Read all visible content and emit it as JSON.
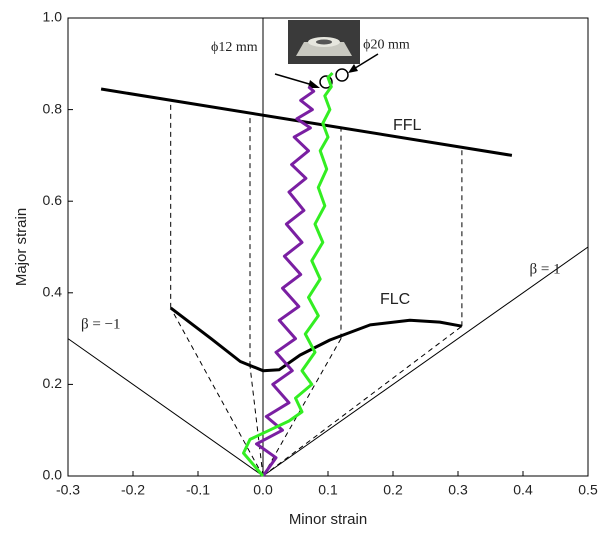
{
  "chart_data": {
    "type": "line",
    "xlabel": "Minor strain",
    "ylabel": "Major strain",
    "xlim": [
      -0.3,
      0.5
    ],
    "ylim": [
      0,
      1
    ],
    "xticks": [
      -0.3,
      -0.2,
      -0.1,
      {
        "value": 0,
        "label": "0.0"
      },
      0.1,
      0.2,
      0.3,
      0.4,
      0.5
    ],
    "yticks": [
      {
        "value": 0,
        "label": "0.0"
      },
      0.2,
      0.4,
      0.6,
      0.8,
      {
        "value": 1,
        "label": "1.0"
      }
    ],
    "series": [
      {
        "color": "#000000",
        "style": "solid",
        "width": 1,
        "x": [
          0,
          0
        ],
        "values": [
          0,
          1
        ]
      },
      {
        "color": "#000000",
        "style": "solid",
        "width": 1,
        "x": [
          -0.3,
          0,
          0.5
        ],
        "values": [
          0.3,
          0,
          0.5
        ]
      },
      {
        "color": "#000000",
        "style": "dashed",
        "width": 1,
        "x": [
          -0.142,
          -0.142,
          null,
          -0.02,
          -0.02,
          null,
          0.12,
          0.12,
          null,
          0.306,
          0.306,
          null,
          0,
          -0.142,
          null,
          0,
          -0.02,
          null,
          0,
          0.12,
          null,
          0,
          0.306
        ],
        "values": [
          0.367,
          0.815,
          null,
          0.24,
          0.79,
          null,
          0.3,
          0.76,
          null,
          0.327,
          0.72,
          null,
          0,
          0.367,
          null,
          0,
          0.24,
          null,
          0,
          0.3,
          null,
          0,
          0.327
        ]
      },
      {
        "color": "#000000",
        "style": "solid",
        "width": 3,
        "x": [
          -0.249,
          0.383
        ],
        "values": [
          0.845,
          0.7
        ]
      },
      {
        "color": "#000000",
        "style": "solid",
        "width": 3,
        "x": [
          -0.142,
          -0.08,
          -0.035,
          0,
          0.025,
          0.057,
          0.103,
          0.165,
          0.226,
          0.272,
          0.306
        ],
        "values": [
          0.367,
          0.3,
          0.25,
          0.23,
          0.232,
          0.264,
          0.297,
          0.33,
          0.34,
          0.336,
          0.327
        ]
      },
      {
        "color": "#7a1fa2",
        "style": "solid",
        "width": 3,
        "x": [
          0,
          0.02,
          -0.01,
          0.03,
          0.005,
          0.04,
          0.015,
          0.045,
          0.02,
          0.05,
          0.025,
          0.055,
          0.03,
          0.058,
          0.033,
          0.06,
          0.036,
          0.063,
          0.04,
          0.066,
          0.044,
          0.07,
          0.048,
          0.073,
          0.052,
          0.076,
          0.058,
          0.078,
          0.07
        ],
        "values": [
          0,
          0.04,
          0.07,
          0.1,
          0.13,
          0.16,
          0.2,
          0.23,
          0.27,
          0.3,
          0.34,
          0.37,
          0.41,
          0.44,
          0.48,
          0.51,
          0.55,
          0.58,
          0.62,
          0.65,
          0.68,
          0.71,
          0.74,
          0.76,
          0.78,
          0.8,
          0.82,
          0.84,
          0.85
        ]
      },
      {
        "color": "#33ee22",
        "style": "solid",
        "width": 3,
        "x": [
          0,
          -0.03,
          -0.02,
          0.01,
          0.04,
          0.06,
          0.05,
          0.075,
          0.06,
          0.08,
          0.065,
          0.085,
          0.07,
          0.088,
          0.075,
          0.092,
          0.08,
          0.095,
          0.085,
          0.098,
          0.088,
          0.1,
          0.092,
          0.103,
          0.095,
          0.105,
          0.1,
          0.107
        ],
        "values": [
          0,
          0.05,
          0.08,
          0.1,
          0.12,
          0.14,
          0.17,
          0.2,
          0.23,
          0.27,
          0.31,
          0.35,
          0.39,
          0.43,
          0.47,
          0.51,
          0.55,
          0.59,
          0.63,
          0.67,
          0.71,
          0.74,
          0.77,
          0.8,
          0.83,
          0.85,
          0.87,
          0.88
        ]
      }
    ],
    "annotations": [
      {
        "text": "FFL",
        "x": 0.2,
        "y": 0.765,
        "size": 16
      },
      {
        "text": "FLC",
        "x": 0.18,
        "y": 0.385,
        "size": 16
      },
      {
        "text": "β = 1",
        "x": 0.41,
        "y": 0.45,
        "size": 15,
        "serif": true
      },
      {
        "text": "β = −1",
        "x": -0.28,
        "y": 0.33,
        "size": 15,
        "serif": true
      },
      {
        "text": "ϕ12 mm",
        "x": -0.08,
        "y": 0.935,
        "size": 14,
        "serif": true
      },
      {
        "text": "ϕ20 mm",
        "x": 0.154,
        "y": 0.94,
        "size": 14,
        "serif": true
      }
    ]
  }
}
